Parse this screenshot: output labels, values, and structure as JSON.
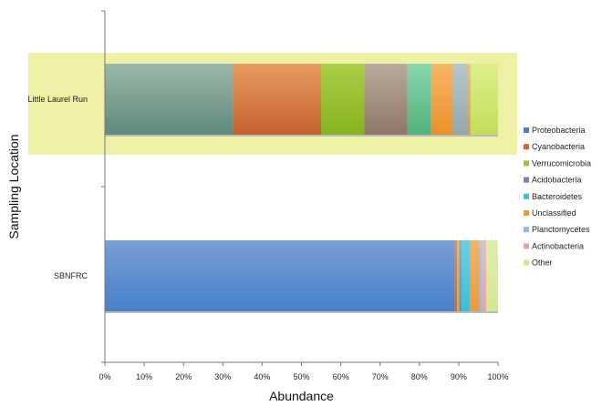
{
  "chart_data": {
    "type": "bar",
    "orientation": "horizontal",
    "stacked": true,
    "xlabel": "Abundance",
    "ylabel": "Sampling Location",
    "xlim": [
      0,
      100
    ],
    "x_ticks": [
      "0%",
      "10%",
      "20%",
      "30%",
      "40%",
      "50%",
      "60%",
      "70%",
      "80%",
      "90%",
      "100%"
    ],
    "categories": [
      "Little Laurel Run",
      "SBNFRC"
    ],
    "highlighted_category": "Little Laurel Run",
    "highlight_color": "#eef0a6",
    "legend_position": "right",
    "grid": false,
    "series": [
      {
        "name": "Proteobacteria",
        "color": "#4a7fc9",
        "values": [
          32.5,
          89.0
        ]
      },
      {
        "name": "Cyanobacteria",
        "color": "#d9603a",
        "values": [
          22.5,
          0.6
        ]
      },
      {
        "name": "Verrucomicrobia",
        "color": "#9bc43c",
        "values": [
          11.0,
          0.5
        ]
      },
      {
        "name": "Acidobacteria",
        "color": "#8a78b8",
        "values": [
          11.0,
          0.6
        ]
      },
      {
        "name": "Bacteroidetes",
        "color": "#3fbfd4",
        "values": [
          6.0,
          2.3
        ]
      },
      {
        "name": "Unclassified",
        "color": "#ee9a3a",
        "values": [
          5.5,
          2.4
        ]
      },
      {
        "name": "Planctomycetes",
        "color": "#93b6e3",
        "values": [
          3.5,
          0.6
        ]
      },
      {
        "name": "Actinobacteria",
        "color": "#eba3a0",
        "values": [
          1.0,
          1.0
        ]
      },
      {
        "name": "Other",
        "color": "#d2e890",
        "values": [
          7.0,
          3.0
        ]
      }
    ],
    "display_colors": [
      [
        "#9cb7a8",
        "#5f8a7c"
      ],
      [
        "#e89c62",
        "#c5622c"
      ],
      [
        "#a9cf47",
        "#86b320"
      ],
      [
        "#b9ab9e",
        "#8e7768"
      ],
      [
        "#88d7ac",
        "#52b27c"
      ],
      [
        "#f6b768",
        "#ec8f2c"
      ],
      [
        "#b5c8cc",
        "#8fa9ae"
      ],
      [
        "#e4c09c",
        "#c99a72"
      ],
      [
        "#dcef88",
        "#c4de58"
      ]
    ]
  }
}
